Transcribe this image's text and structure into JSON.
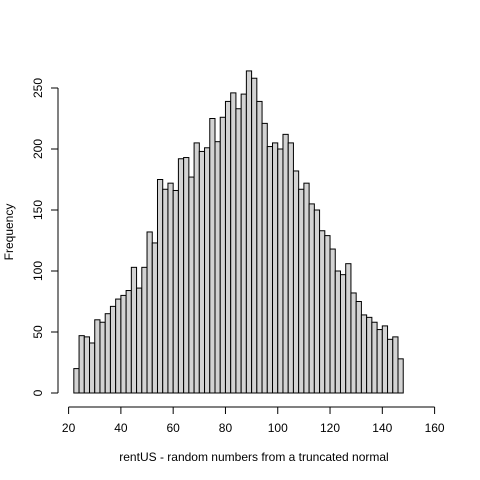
{
  "chart_data": {
    "type": "bar",
    "title": "",
    "xlabel": "rentUS - random numbers from a truncated normal",
    "ylabel": "Frequency",
    "xlim": [
      20,
      160
    ],
    "ylim": [
      0,
      264
    ],
    "bin_start": 22,
    "bin_width": 2,
    "values": [
      20,
      47,
      46,
      41,
      60,
      58,
      65,
      71,
      77,
      80,
      84,
      103,
      86,
      103,
      132,
      123,
      175,
      167,
      172,
      166,
      192,
      193,
      177,
      205,
      198,
      201,
      225,
      206,
      226,
      239,
      246,
      233,
      245,
      264,
      258,
      239,
      221,
      202,
      205,
      200,
      212,
      205,
      182,
      167,
      172,
      155,
      150,
      133,
      129,
      118,
      100,
      97,
      106,
      82,
      75,
      64,
      62,
      58,
      52,
      55,
      44,
      46,
      28
    ],
    "xticks": [
      20,
      40,
      60,
      80,
      100,
      120,
      140,
      160
    ],
    "yticks": [
      0,
      50,
      100,
      150,
      200,
      250
    ],
    "bar_color": "#d3d3d3",
    "grid": false
  }
}
